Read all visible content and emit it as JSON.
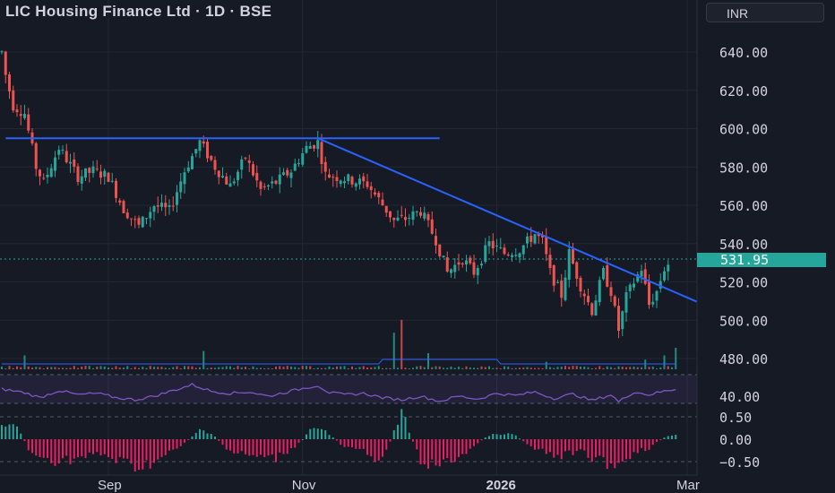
{
  "header": {
    "title": "LIC Housing Finance Ltd · 1D · BSE",
    "currency": "INR"
  },
  "price": {
    "last": "531.95",
    "last_value": 531.95
  },
  "colors": {
    "up": "#26a69a",
    "down": "#ef5350",
    "trendline": "#2962ff",
    "rsi": "#7e57c2",
    "macd_pos": "#26a69a",
    "macd_neg": "#e91e63",
    "volume_ma": "#2962ff",
    "background": "#161a25",
    "grid": "#232734"
  },
  "chart_data": [
    {
      "type": "candlestick",
      "panel": "price",
      "y_ticks": [
        "640.00",
        "620.00",
        "600.00",
        "580.00",
        "560.00",
        "540.00",
        "520.00",
        "500.00",
        "480.00"
      ],
      "ylim": [
        475,
        645
      ],
      "x_ticks": [
        "Sep",
        "Nov",
        "2026",
        "Mar"
      ],
      "x_tick_bar_index": [
        28,
        79,
        130,
        180
      ],
      "n_bars": 176,
      "anchors": [
        [
          0,
          640
        ],
        [
          1,
          628
        ],
        [
          3,
          612
        ],
        [
          6,
          608
        ],
        [
          9,
          580
        ],
        [
          11,
          572
        ],
        [
          15,
          590
        ],
        [
          20,
          575
        ],
        [
          24,
          578
        ],
        [
          28,
          575
        ],
        [
          32,
          558
        ],
        [
          36,
          549
        ],
        [
          40,
          560
        ],
        [
          44,
          557
        ],
        [
          48,
          578
        ],
        [
          52,
          593
        ],
        [
          56,
          580
        ],
        [
          60,
          570
        ],
        [
          64,
          585
        ],
        [
          68,
          568
        ],
        [
          72,
          572
        ],
        [
          76,
          578
        ],
        [
          80,
          590
        ],
        [
          83,
          593
        ],
        [
          85,
          576
        ],
        [
          90,
          574
        ],
        [
          96,
          571
        ],
        [
          99,
          563
        ],
        [
          103,
          552
        ],
        [
          106,
          553
        ],
        [
          110,
          557
        ],
        [
          114,
          542
        ],
        [
          117,
          525
        ],
        [
          121,
          532
        ],
        [
          124,
          525
        ],
        [
          128,
          540
        ],
        [
          132,
          535
        ],
        [
          136,
          537
        ],
        [
          140,
          545
        ],
        [
          142,
          541
        ],
        [
          144,
          525
        ],
        [
          147,
          513
        ],
        [
          149,
          535
        ],
        [
          152,
          518
        ],
        [
          155,
          505
        ],
        [
          158,
          525
        ],
        [
          160,
          515
        ],
        [
          162,
          495
        ],
        [
          164,
          512
        ],
        [
          166,
          520
        ],
        [
          168,
          527
        ],
        [
          170,
          508
        ],
        [
          172,
          515
        ],
        [
          174,
          527
        ],
        [
          176,
          531.95
        ]
      ],
      "trendlines": [
        {
          "name": "resistance",
          "points": [
            [
              1,
              595
            ],
            [
              115,
              595
            ]
          ]
        },
        {
          "name": "descending",
          "points": [
            [
              83,
              595
            ],
            [
              188,
              505
            ]
          ]
        }
      ],
      "last_price_line": 531.95
    },
    {
      "type": "bar",
      "panel": "volume",
      "spikes": [
        [
          103,
          0.68
        ],
        [
          105,
          0.92
        ],
        [
          112,
          0.3
        ],
        [
          53,
          0.34
        ],
        [
          177,
          0.4
        ],
        [
          174,
          0.26
        ],
        [
          169,
          0.18
        ],
        [
          143,
          0.14
        ],
        [
          6,
          0.26
        ]
      ],
      "baseline": 0.05
    },
    {
      "type": "line",
      "panel": "rsi",
      "y_ticks": [
        "40.00"
      ],
      "ylim": [
        30,
        70
      ],
      "anchors": [
        [
          0,
          50
        ],
        [
          6,
          45
        ],
        [
          10,
          38
        ],
        [
          15,
          48
        ],
        [
          20,
          42
        ],
        [
          25,
          44
        ],
        [
          30,
          38
        ],
        [
          35,
          35
        ],
        [
          40,
          40
        ],
        [
          45,
          48
        ],
        [
          50,
          56
        ],
        [
          55,
          47
        ],
        [
          60,
          44
        ],
        [
          65,
          46
        ],
        [
          70,
          40
        ],
        [
          75,
          46
        ],
        [
          80,
          52
        ],
        [
          83,
          55
        ],
        [
          86,
          45
        ],
        [
          90,
          42
        ],
        [
          95,
          44
        ],
        [
          100,
          38
        ],
        [
          105,
          35
        ],
        [
          110,
          40
        ],
        [
          115,
          33
        ],
        [
          120,
          40
        ],
        [
          125,
          36
        ],
        [
          130,
          44
        ],
        [
          135,
          41
        ],
        [
          140,
          46
        ],
        [
          145,
          37
        ],
        [
          150,
          43
        ],
        [
          155,
          34
        ],
        [
          160,
          42
        ],
        [
          162,
          32
        ],
        [
          166,
          46
        ],
        [
          170,
          42
        ],
        [
          174,
          47
        ],
        [
          177,
          50
        ]
      ]
    },
    {
      "type": "bar",
      "panel": "macd",
      "y_ticks": [
        "0.50",
        "0.00",
        "−0.50"
      ],
      "ylim": [
        -0.75,
        0.75
      ],
      "anchors": [
        [
          0,
          0.4
        ],
        [
          4,
          0.3
        ],
        [
          8,
          -0.4
        ],
        [
          14,
          -0.5
        ],
        [
          20,
          -0.45
        ],
        [
          26,
          -0.35
        ],
        [
          32,
          -0.55
        ],
        [
          36,
          -0.65
        ],
        [
          42,
          -0.45
        ],
        [
          48,
          -0.1
        ],
        [
          52,
          0.25
        ],
        [
          56,
          0.05
        ],
        [
          60,
          -0.3
        ],
        [
          66,
          -0.4
        ],
        [
          72,
          -0.45
        ],
        [
          78,
          -0.1
        ],
        [
          82,
          0.3
        ],
        [
          85,
          0.2
        ],
        [
          90,
          -0.2
        ],
        [
          96,
          -0.3
        ],
        [
          100,
          -0.55
        ],
        [
          105,
          0.7
        ],
        [
          110,
          -0.55
        ],
        [
          116,
          -0.6
        ],
        [
          122,
          -0.3
        ],
        [
          128,
          0.1
        ],
        [
          134,
          0.15
        ],
        [
          140,
          -0.25
        ],
        [
          146,
          -0.4
        ],
        [
          152,
          -0.3
        ],
        [
          158,
          -0.55
        ],
        [
          162,
          -0.6
        ],
        [
          166,
          -0.3
        ],
        [
          170,
          -0.2
        ],
        [
          174,
          0.05
        ],
        [
          177,
          0.1
        ]
      ]
    }
  ]
}
